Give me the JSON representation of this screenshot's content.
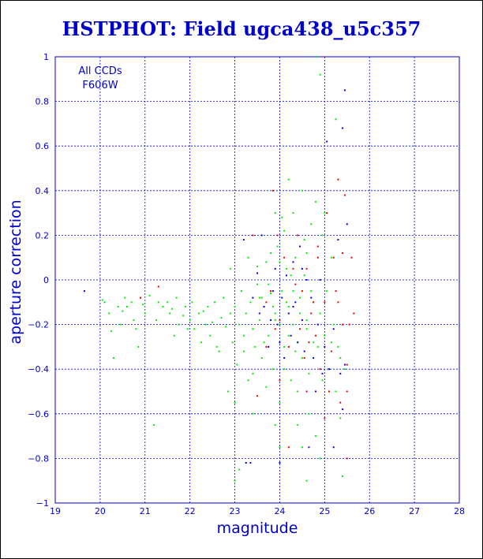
{
  "chart_data": {
    "type": "scatter",
    "title": "HSTPHOT: Field ugca438_u5c357",
    "xlabel": "magnitude",
    "ylabel": "aperture correction",
    "xlim": [
      19,
      28
    ],
    "ylim": [
      -1,
      1
    ],
    "xticks": [
      19,
      20,
      21,
      22,
      23,
      24,
      25,
      26,
      27,
      28
    ],
    "yticks": [
      -1,
      -0.8,
      -0.6,
      -0.4,
      -0.2,
      0,
      0.2,
      0.4,
      0.6,
      0.8,
      1
    ],
    "xtick_labels": [
      "19",
      "20",
      "21",
      "22",
      "23",
      "24",
      "25",
      "26",
      "27",
      "28"
    ],
    "ytick_labels": [
      "−1",
      "−0.8",
      "−0.6",
      "−0.4",
      "−0.2",
      "0",
      "0.2",
      "0.4",
      "0.6",
      "0.8",
      "1"
    ],
    "grid": true,
    "annotations": [
      "All CCDs",
      "F606W"
    ],
    "colors": {
      "axis": "#0000cc",
      "grid": "#0000cc",
      "background": "#ffffff"
    },
    "series": [
      {
        "color": "#00ee00",
        "points": [
          [
            20.05,
            -0.09
          ],
          [
            20.1,
            -0.1
          ],
          [
            20.2,
            -0.15
          ],
          [
            20.25,
            -0.23
          ],
          [
            20.3,
            -0.35
          ],
          [
            20.4,
            -0.12
          ],
          [
            20.45,
            -0.2
          ],
          [
            20.55,
            -0.08
          ],
          [
            20.6,
            -0.12
          ],
          [
            20.7,
            -0.1
          ],
          [
            20.75,
            -0.18
          ],
          [
            20.85,
            -0.3
          ],
          [
            20.9,
            -0.08
          ],
          [
            20.95,
            -0.11
          ],
          [
            21.0,
            -0.15
          ],
          [
            21.1,
            -0.07
          ],
          [
            21.2,
            -0.65
          ],
          [
            21.3,
            -0.1
          ],
          [
            21.4,
            -0.12
          ],
          [
            21.5,
            -0.1
          ],
          [
            21.55,
            -0.15
          ],
          [
            21.6,
            -0.13
          ],
          [
            21.7,
            -0.08
          ],
          [
            21.75,
            -0.2
          ],
          [
            21.85,
            -0.16
          ],
          [
            21.9,
            -0.12
          ],
          [
            22.0,
            -0.18
          ],
          [
            22.05,
            -0.1
          ],
          [
            22.1,
            -0.22
          ],
          [
            22.2,
            -0.15
          ],
          [
            22.3,
            -0.14
          ],
          [
            22.35,
            -0.2
          ],
          [
            22.4,
            -0.12
          ],
          [
            22.45,
            -0.25
          ],
          [
            22.5,
            -0.19
          ],
          [
            22.55,
            -0.1
          ],
          [
            22.6,
            -0.3
          ],
          [
            22.7,
            -0.17
          ],
          [
            22.75,
            -0.08
          ],
          [
            22.8,
            -0.21
          ],
          [
            22.85,
            -0.5
          ],
          [
            22.9,
            -0.15
          ],
          [
            22.95,
            -0.28
          ],
          [
            23.0,
            -0.12
          ],
          [
            23.05,
            -0.38
          ],
          [
            23.1,
            -0.2
          ],
          [
            23.15,
            -0.05
          ],
          [
            23.2,
            -0.25
          ],
          [
            23.25,
            -0.15
          ],
          [
            23.3,
            -0.45
          ],
          [
            23.35,
            -0.1
          ],
          [
            23.4,
            -0.22
          ],
          [
            23.45,
            -0.3
          ],
          [
            23.5,
            -0.02
          ],
          [
            23.55,
            -0.18
          ],
          [
            23.6,
            -0.35
          ],
          [
            23.65,
            -0.12
          ],
          [
            23.7,
            0.08
          ],
          [
            23.75,
            -0.25
          ],
          [
            23.8,
            -0.06
          ],
          [
            23.85,
            -0.4
          ],
          [
            23.9,
            -0.15
          ],
          [
            23.95,
            0.15
          ],
          [
            24.0,
            -0.2
          ],
          [
            24.05,
            -0.05
          ],
          [
            24.1,
            -0.3
          ],
          [
            24.15,
            0.05
          ],
          [
            24.2,
            -0.12
          ],
          [
            24.25,
            -0.45
          ],
          [
            24.3,
            -0.2
          ],
          [
            24.35,
            0.1
          ],
          [
            24.4,
            -0.28
          ],
          [
            24.45,
            -0.08
          ],
          [
            24.5,
            -0.35
          ],
          [
            24.55,
            0.02
          ],
          [
            24.6,
            -0.18
          ],
          [
            24.65,
            -0.6
          ],
          [
            24.7,
            0.25
          ],
          [
            24.75,
            -0.1
          ],
          [
            24.8,
            0.35
          ],
          [
            24.85,
            -0.3
          ],
          [
            24.9,
            -0.15
          ],
          [
            24.95,
            0.2
          ],
          [
            25.0,
            -0.25
          ],
          [
            25.05,
            -0.05
          ],
          [
            25.1,
            -0.4
          ],
          [
            25.15,
            0.1
          ],
          [
            25.2,
            -0.2
          ],
          [
            25.25,
            0.72
          ],
          [
            25.3,
            -0.3
          ],
          [
            25.35,
            -0.62
          ],
          [
            25.4,
            -0.88
          ],
          [
            23.0,
            -0.9
          ],
          [
            23.1,
            -0.85
          ],
          [
            24.6,
            -0.9
          ],
          [
            24.9,
            0.92
          ],
          [
            24.8,
            1.0
          ],
          [
            24.2,
            0.45
          ],
          [
            24.5,
            0.4
          ],
          [
            24.3,
            0.3
          ],
          [
            23.9,
            0.3
          ],
          [
            24.1,
            0.22
          ],
          [
            24.6,
            0.12
          ],
          [
            24.0,
            0.08
          ],
          [
            23.8,
            0.12
          ],
          [
            23.5,
            0.06
          ],
          [
            23.3,
            0.1
          ],
          [
            22.9,
            0.05
          ],
          [
            23.6,
            -0.08
          ],
          [
            24.3,
            -0.05
          ],
          [
            24.7,
            -0.05
          ],
          [
            24.1,
            -0.4
          ],
          [
            24.4,
            -0.5
          ],
          [
            24.0,
            -0.55
          ],
          [
            23.7,
            -0.48
          ],
          [
            23.4,
            -0.6
          ],
          [
            24.8,
            -0.7
          ],
          [
            24.5,
            -0.75
          ],
          [
            24.9,
            -0.8
          ],
          [
            23.9,
            -0.65
          ],
          [
            24.2,
            -0.25
          ],
          [
            24.6,
            -0.22
          ],
          [
            23.9,
            -0.18
          ],
          [
            24.35,
            -0.32
          ],
          [
            23.65,
            -0.28
          ],
          [
            24.15,
            -0.1
          ],
          [
            24.45,
            -0.15
          ],
          [
            24.75,
            -0.28
          ],
          [
            23.85,
            -0.12
          ],
          [
            22.65,
            -0.32
          ],
          [
            22.25,
            -0.28
          ],
          [
            21.95,
            -0.22
          ],
          [
            21.65,
            -0.25
          ],
          [
            21.25,
            -0.18
          ],
          [
            20.8,
            -0.22
          ],
          [
            20.5,
            -0.14
          ],
          [
            24.95,
            -0.45
          ],
          [
            25.15,
            -0.28
          ],
          [
            25.25,
            -0.5
          ],
          [
            25.35,
            -0.35
          ],
          [
            25.45,
            -0.4
          ],
          [
            23.2,
            -0.32
          ],
          [
            23.0,
            -0.55
          ],
          [
            23.4,
            -0.42
          ],
          [
            24.0,
            -0.75
          ],
          [
            24.4,
            -0.65
          ],
          [
            24.65,
            -0.42
          ],
          [
            23.55,
            -0.08
          ],
          [
            24.05,
            0.28
          ],
          [
            24.55,
            0.18
          ],
          [
            25.0,
            0.3
          ],
          [
            24.25,
            0.02
          ],
          [
            23.75,
            -0.02
          ]
        ]
      },
      {
        "color": "#ee0000",
        "points": [
          [
            20.9,
            -0.08
          ],
          [
            21.3,
            -0.03
          ],
          [
            23.4,
            0.2
          ],
          [
            23.7,
            -0.1
          ],
          [
            23.8,
            -0.05
          ],
          [
            23.85,
            0.4
          ],
          [
            24.0,
            -0.18
          ],
          [
            24.1,
            0.1
          ],
          [
            24.2,
            -0.3
          ],
          [
            24.3,
            -0.12
          ],
          [
            24.4,
            0.2
          ],
          [
            24.45,
            -0.22
          ],
          [
            24.5,
            -0.05
          ],
          [
            24.55,
            -0.35
          ],
          [
            24.6,
            0.05
          ],
          [
            24.7,
            -0.15
          ],
          [
            24.8,
            -0.25
          ],
          [
            24.85,
            0.1
          ],
          [
            24.9,
            -0.4
          ],
          [
            25.0,
            -0.1
          ],
          [
            25.05,
            0.3
          ],
          [
            25.1,
            -0.5
          ],
          [
            25.2,
            0.1
          ],
          [
            25.25,
            -0.05
          ],
          [
            25.3,
            0.45
          ],
          [
            25.35,
            -0.55
          ],
          [
            25.4,
            -0.2
          ],
          [
            25.45,
            0.38
          ],
          [
            25.5,
            -0.5
          ],
          [
            25.55,
            -0.2
          ],
          [
            25.6,
            0.1
          ],
          [
            25.65,
            -0.15
          ],
          [
            25.5,
            -0.8
          ],
          [
            24.2,
            -0.75
          ],
          [
            24.6,
            -0.5
          ],
          [
            23.7,
            -0.3
          ],
          [
            24.0,
            -0.45
          ],
          [
            23.5,
            -0.52
          ],
          [
            24.3,
            0.05
          ],
          [
            24.75,
            -0.1
          ],
          [
            25.15,
            -0.32
          ],
          [
            25.4,
            0.12
          ],
          [
            25.5,
            -0.38
          ],
          [
            23.9,
            -0.22
          ],
          [
            24.65,
            -0.28
          ],
          [
            25.0,
            -0.62
          ],
          [
            24.35,
            -0.02
          ],
          [
            23.95,
            0.2
          ],
          [
            24.85,
            0.15
          ],
          [
            25.3,
            -0.1
          ]
        ]
      },
      {
        "color": "#0000ee",
        "points": [
          [
            19.65,
            -0.05
          ],
          [
            23.25,
            -0.82
          ],
          [
            23.35,
            -0.82
          ],
          [
            23.2,
            0.18
          ],
          [
            23.4,
            -0.08
          ],
          [
            23.5,
            0.03
          ],
          [
            23.6,
            0.2
          ],
          [
            23.65,
            -0.12
          ],
          [
            23.75,
            -0.3
          ],
          [
            23.8,
            -0.18
          ],
          [
            23.9,
            0.05
          ],
          [
            23.95,
            -0.2
          ],
          [
            24.0,
            -0.82
          ],
          [
            24.05,
            -0.08
          ],
          [
            24.1,
            -0.35
          ],
          [
            24.15,
            0.02
          ],
          [
            24.2,
            -0.15
          ],
          [
            24.25,
            -0.25
          ],
          [
            24.3,
            0.08
          ],
          [
            24.35,
            -0.1
          ],
          [
            24.4,
            -0.28
          ],
          [
            24.45,
            0.15
          ],
          [
            24.5,
            -0.18
          ],
          [
            24.55,
            -0.32
          ],
          [
            24.6,
            0.0
          ],
          [
            24.7,
            -0.08
          ],
          [
            24.75,
            -0.35
          ],
          [
            24.8,
            -0.5
          ],
          [
            24.85,
            -0.2
          ],
          [
            24.9,
            0.0
          ],
          [
            25.0,
            -0.3
          ],
          [
            25.05,
            0.62
          ],
          [
            25.1,
            -0.4
          ],
          [
            25.2,
            -0.22
          ],
          [
            25.3,
            0.18
          ],
          [
            25.35,
            -0.42
          ],
          [
            25.4,
            -0.58
          ],
          [
            25.45,
            0.85
          ],
          [
            25.5,
            0.25
          ],
          [
            25.45,
            -0.38
          ],
          [
            25.4,
            0.68
          ],
          [
            24.95,
            -0.42
          ],
          [
            24.65,
            -0.75
          ],
          [
            25.2,
            -0.75
          ],
          [
            24.3,
            -0.12
          ],
          [
            23.85,
            -0.05
          ],
          [
            24.0,
            -0.28
          ],
          [
            24.5,
            0.05
          ],
          [
            23.55,
            -0.15
          ]
        ]
      }
    ]
  }
}
